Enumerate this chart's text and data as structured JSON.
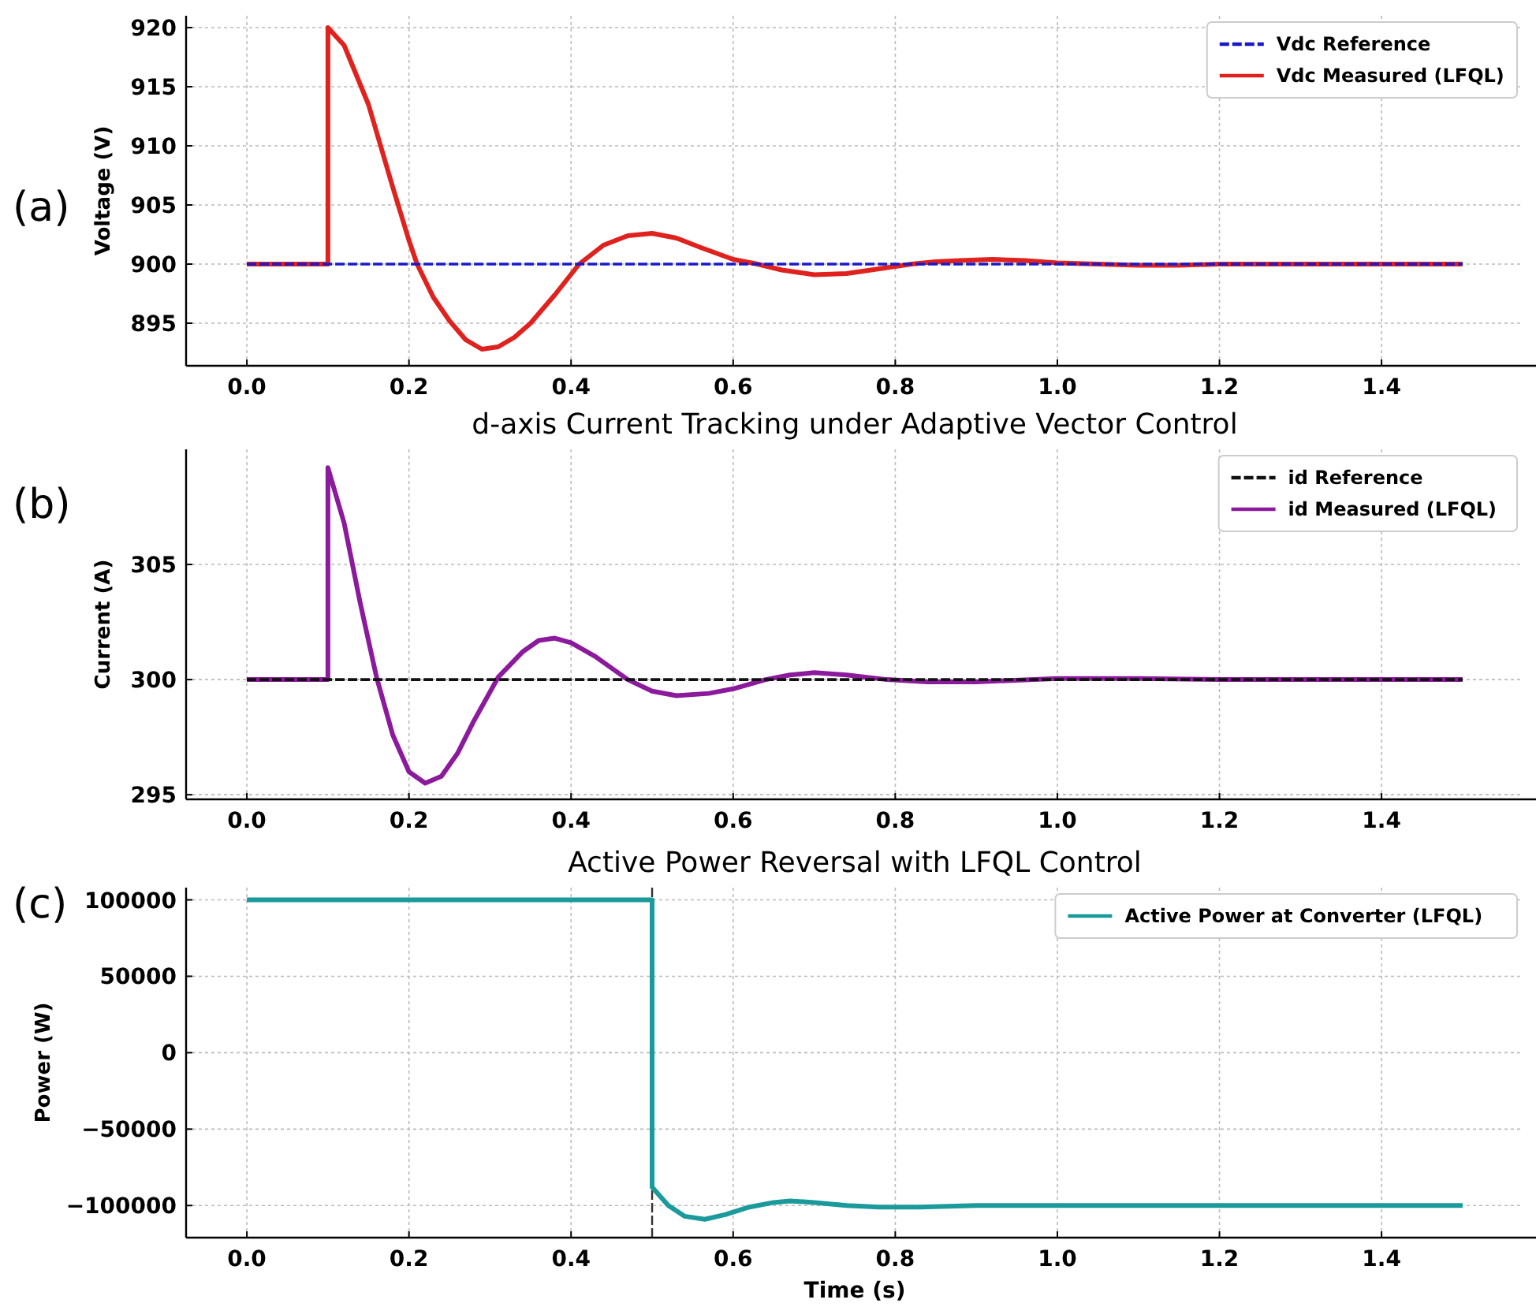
{
  "chart_data": [
    {
      "type": "line",
      "ylabel": "Voltage (V)",
      "annotations": [
        "(a)"
      ],
      "xlim": [
        -0.075,
        1.575
      ],
      "xticks": [
        {
          "value": 0,
          "label": "0.0"
        },
        {
          "value": 0.2,
          "label": "0.2"
        },
        {
          "value": 0.4,
          "label": "0.4"
        },
        {
          "value": 0.6,
          "label": "0.6"
        },
        {
          "value": 0.8,
          "label": "0.8"
        },
        {
          "value": 1,
          "label": "1.0"
        },
        {
          "value": 1.2,
          "label": "1.2"
        },
        {
          "value": 1.4,
          "label": "1.4"
        }
      ],
      "ylim": [
        891.4,
        921
      ],
      "yticks": [
        895,
        900,
        905,
        910,
        915,
        920
      ],
      "grid": true,
      "legend": "top right",
      "series": [
        {
          "name": "Vdc Reference",
          "color": "#1a1ac8",
          "line_style": "dashed",
          "x": [
            0,
            1.5
          ],
          "values": [
            900,
            900
          ]
        },
        {
          "name": "Vdc Measured (LFQL)",
          "color": "#e0221e",
          "line_style": "solid",
          "x": [
            0,
            0.1,
            0.1,
            0.12,
            0.15,
            0.18,
            0.2,
            0.21,
            0.23,
            0.25,
            0.27,
            0.29,
            0.31,
            0.33,
            0.35,
            0.38,
            0.41,
            0.44,
            0.47,
            0.5,
            0.53,
            0.56,
            0.6,
            0.63,
            0.66,
            0.7,
            0.74,
            0.78,
            0.82,
            0.85,
            0.88,
            0.92,
            0.96,
            1.0,
            1.05,
            1.1,
            1.15,
            1.2,
            1.3,
            1.5
          ],
          "values": [
            900,
            900,
            920,
            918.5,
            913.5,
            906.5,
            902,
            900,
            897.2,
            895.2,
            893.6,
            892.8,
            893,
            893.8,
            895,
            897.4,
            900,
            901.6,
            902.4,
            902.6,
            902.2,
            901.4,
            900.4,
            900,
            899.5,
            899.1,
            899.2,
            899.6,
            900,
            900.2,
            900.3,
            900.4,
            900.3,
            900.1,
            900,
            899.9,
            899.9,
            900,
            900,
            900
          ]
        }
      ]
    },
    {
      "type": "line",
      "title": "d-axis Current Tracking under Adaptive Vector Control",
      "ylabel": "Current (A)",
      "annotations": [
        "(b)"
      ],
      "xlim": [
        -0.075,
        1.575
      ],
      "xticks": [
        {
          "value": 0,
          "label": "0.0"
        },
        {
          "value": 0.2,
          "label": "0.2"
        },
        {
          "value": 0.4,
          "label": "0.4"
        },
        {
          "value": 0.6,
          "label": "0.6"
        },
        {
          "value": 0.8,
          "label": "0.8"
        },
        {
          "value": 1,
          "label": "1.0"
        },
        {
          "value": 1.2,
          "label": "1.2"
        },
        {
          "value": 1.4,
          "label": "1.4"
        }
      ],
      "ylim": [
        294.8,
        310
      ],
      "yticks": [
        295,
        300,
        305
      ],
      "grid": true,
      "legend": "top right",
      "series": [
        {
          "name": "id Reference",
          "color": "#111111",
          "line_style": "dashed",
          "x": [
            0,
            1.5
          ],
          "values": [
            300,
            300
          ]
        },
        {
          "name": "id Measured (LFQL)",
          "color": "#8c1a9c",
          "line_style": "solid",
          "x": [
            0,
            0.1,
            0.1,
            0.12,
            0.14,
            0.16,
            0.18,
            0.2,
            0.22,
            0.24,
            0.26,
            0.28,
            0.31,
            0.34,
            0.36,
            0.38,
            0.4,
            0.43,
            0.47,
            0.5,
            0.53,
            0.57,
            0.6,
            0.64,
            0.67,
            0.7,
            0.74,
            0.79,
            0.84,
            0.9,
            1.0,
            1.1,
            1.2,
            1.5
          ],
          "values": [
            300,
            300,
            309.2,
            306.8,
            303.3,
            300.1,
            297.6,
            296,
            295.5,
            295.8,
            296.8,
            298.2,
            300.1,
            301.2,
            301.7,
            301.8,
            301.6,
            301,
            300,
            299.5,
            299.3,
            299.4,
            299.6,
            300,
            300.2,
            300.3,
            300.2,
            300,
            299.9,
            299.9,
            300.05,
            300.05,
            300,
            300
          ]
        }
      ]
    },
    {
      "type": "line",
      "title": "Active Power Reversal with LFQL Control",
      "xlabel": "Time (s)",
      "ylabel": "Power (W)",
      "annotations": [
        "(c)"
      ],
      "xlim": [
        -0.075,
        1.575
      ],
      "xticks": [
        {
          "value": 0,
          "label": "0.0"
        },
        {
          "value": 0.2,
          "label": "0.2"
        },
        {
          "value": 0.4,
          "label": "0.4"
        },
        {
          "value": 0.6,
          "label": "0.6"
        },
        {
          "value": 0.8,
          "label": "0.8"
        },
        {
          "value": 1,
          "label": "1.0"
        },
        {
          "value": 1.2,
          "label": "1.2"
        },
        {
          "value": 1.4,
          "label": "1.4"
        }
      ],
      "ylim": [
        -121000,
        108000
      ],
      "yticks": [
        100000,
        50000,
        0,
        {
          "value": -50000,
          "label": "−50000"
        },
        {
          "value": -100000,
          "label": "−100000"
        }
      ],
      "grid": true,
      "legend": "top right",
      "ref_lines": [
        {
          "axis": "x",
          "value": 0.5,
          "color": "#333333",
          "line_style": "dashed"
        }
      ],
      "series": [
        {
          "name": "Active Power at Converter (LFQL)",
          "color": "#1a9a9a",
          "line_style": "solid",
          "x": [
            0,
            0.5,
            0.5,
            0.52,
            0.54,
            0.565,
            0.59,
            0.62,
            0.65,
            0.67,
            0.7,
            0.74,
            0.78,
            0.83,
            0.9,
            1.0,
            1.5
          ],
          "values": [
            100000,
            100000,
            -88000,
            -100000,
            -107000,
            -109000,
            -106000,
            -101000,
            -98000,
            -97000,
            -98000,
            -100000,
            -101000,
            -101000,
            -100000,
            -100000,
            -100000
          ]
        }
      ]
    }
  ]
}
